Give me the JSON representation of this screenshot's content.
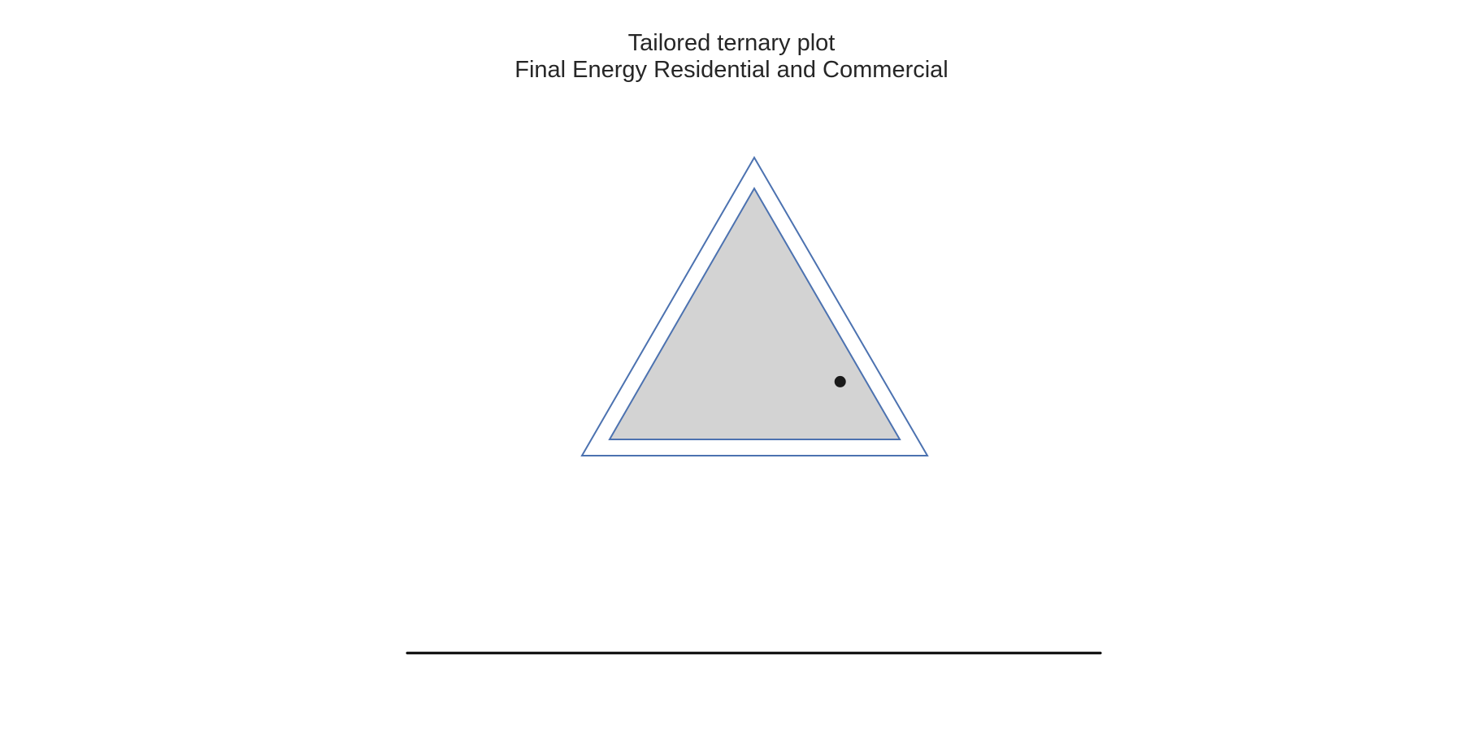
{
  "chart_data": {
    "type": "scatter",
    "subtype": "ternary",
    "title": "Tailored ternary plot",
    "subtitle": "Final Energy Residential and Commercial",
    "grid": false,
    "legend": "none",
    "colors": {
      "outline": "#4c72b0",
      "fill": "#d3d3d3",
      "point": "#1a1a1a",
      "baseline": "#000000"
    },
    "points": [
      {
        "top": 0.23,
        "left": 0.09,
        "right": 0.68
      }
    ]
  }
}
